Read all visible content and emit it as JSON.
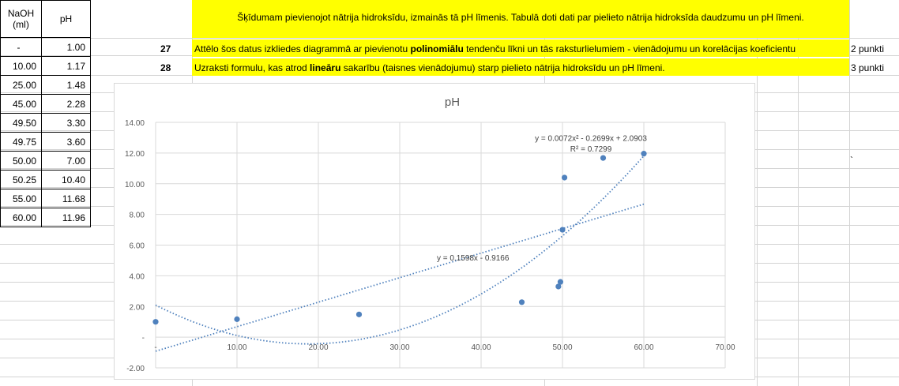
{
  "table": {
    "headers": [
      "NaOH\n(ml)",
      "pH"
    ],
    "rows": [
      [
        "-",
        "1.00"
      ],
      [
        "10.00",
        "1.17"
      ],
      [
        "25.00",
        "1.48"
      ],
      [
        "45.00",
        "2.28"
      ],
      [
        "49.50",
        "3.30"
      ],
      [
        "49.75",
        "3.60"
      ],
      [
        "50.00",
        "7.00"
      ],
      [
        "50.25",
        "10.40"
      ],
      [
        "55.00",
        "11.68"
      ],
      [
        "60.00",
        "11.96"
      ]
    ]
  },
  "intro": "Šķīdumam pievienojot nātrija hidroksīdu, izmainās tā pH līmenis. Tabulā doti dati par pielieto nātrija hidroksīda daudzumu un pH līmeni.",
  "tasks": [
    {
      "num": "27",
      "text_a": "Attēlo šos datus izkliedes diagrammā  ar pievienotu ",
      "text_b": "polinomiālu",
      "text_c": " tendenču līkni un tās raksturlielumiem - vienādojumu un korelācijas koeficientu",
      "points": "2 punkti"
    },
    {
      "num": "28",
      "text_a": "Uzraksti formulu, kas atrod ",
      "text_b": "lineāru",
      "text_c": " sakarību (taisnes vienādojumu) starp pielieto nātrija hidroksīdu un pH līmeni.",
      "points": "3 punkti"
    }
  ],
  "stray_mark": "`",
  "colors": {
    "highlight": "#ffff00",
    "series": "#4f81bd",
    "gridline": "#d9d9d9"
  },
  "chart_data": {
    "type": "scatter",
    "title": "pH",
    "x": [
      0,
      10,
      25,
      45,
      49.5,
      49.75,
      50,
      50.25,
      55,
      60
    ],
    "y": [
      1.0,
      1.17,
      1.48,
      2.28,
      3.3,
      3.6,
      7.0,
      10.4,
      11.68,
      11.96
    ],
    "xlim": [
      0,
      70
    ],
    "ylim": [
      -2,
      14
    ],
    "x_ticks": [
      "-",
      "10.00",
      "20.00",
      "30.00",
      "40.00",
      "50.00",
      "60.00",
      "70.00"
    ],
    "y_ticks": [
      "-2.00",
      "-",
      "2.00",
      "4.00",
      "6.00",
      "8.00",
      "10.00",
      "12.00",
      "14.00"
    ],
    "grid": true,
    "trendlines": [
      {
        "type": "polynomial",
        "equation": "y = 0.0072x² - 0.2699x + 2.0903",
        "r2": "R² = 0.7299",
        "coef": [
          0.0072,
          -0.2699,
          2.0903
        ]
      },
      {
        "type": "linear",
        "equation": "y = 0.1598x - 0.9166",
        "coef": [
          0,
          0.1598,
          -0.9166
        ]
      }
    ]
  }
}
